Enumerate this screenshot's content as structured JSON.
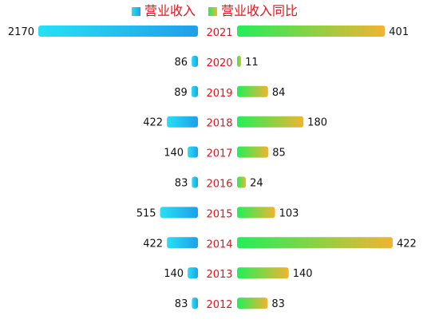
{
  "chart_data": {
    "type": "bar",
    "categories": [
      "2021",
      "2020",
      "2019",
      "2018",
      "2017",
      "2016",
      "2015",
      "2014",
      "2013",
      "2012"
    ],
    "series": [
      {
        "name": "营业收入",
        "values": [
          2170,
          86,
          89,
          422,
          140,
          83,
          515,
          422,
          140,
          83
        ],
        "color_from": "#27e0f5",
        "color_to": "#1f9fe8"
      },
      {
        "name": "营业收入同比",
        "values": [
          401,
          11,
          84,
          180,
          85,
          24,
          103,
          422,
          140,
          83
        ],
        "color_from": "#22ef59",
        "color_to": "#f0b431"
      }
    ],
    "category_label_color": "#e4141a",
    "value_label_color": "#111111",
    "legend_position": "top-center",
    "grid": false
  }
}
